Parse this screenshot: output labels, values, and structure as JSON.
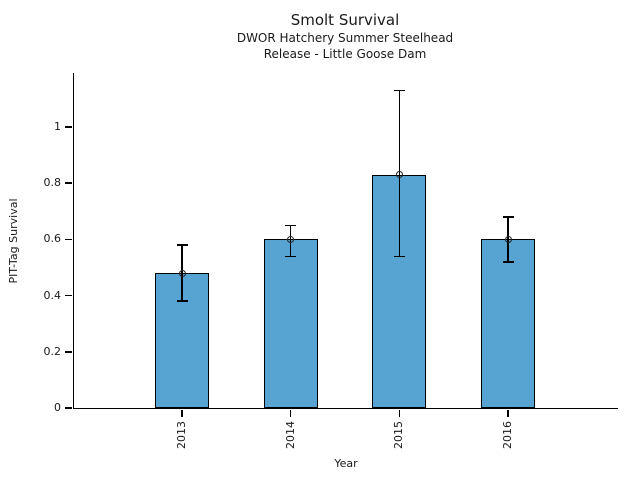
{
  "header": {
    "title": "Smolt Survival",
    "subtitle1": "DWOR Hatchery Summer Steelhead",
    "subtitle2": "Release - Little Goose Dam"
  },
  "chart_data": {
    "type": "bar",
    "title": "Smolt Survival",
    "subtitle": [
      "DWOR Hatchery Summer Steelhead",
      "Release - Little Goose Dam"
    ],
    "categories": [
      "2013",
      "2014",
      "2015",
      "2016"
    ],
    "values": [
      0.48,
      0.6,
      0.83,
      0.6
    ],
    "error_low": [
      0.38,
      0.54,
      0.54,
      0.52
    ],
    "error_high": [
      0.58,
      0.65,
      1.13,
      0.68
    ],
    "xlabel": "Year",
    "ylabel": "PIT-Tag Survival",
    "yticks": [
      0,
      0.2,
      0.4,
      0.6,
      0.8,
      1
    ],
    "ytick_labels": [
      "0",
      "0.2",
      "0.4",
      "0.6",
      "0.8",
      "1"
    ],
    "ylim": [
      0,
      1.19
    ],
    "xtick_rotation_deg": 90,
    "grid": false,
    "legend": "none",
    "bar_color": "#57a4d2",
    "bar_edge_color": "#000000",
    "error_bar_color": "#000000",
    "marker": "open-circle",
    "marker_color": "#222222"
  }
}
